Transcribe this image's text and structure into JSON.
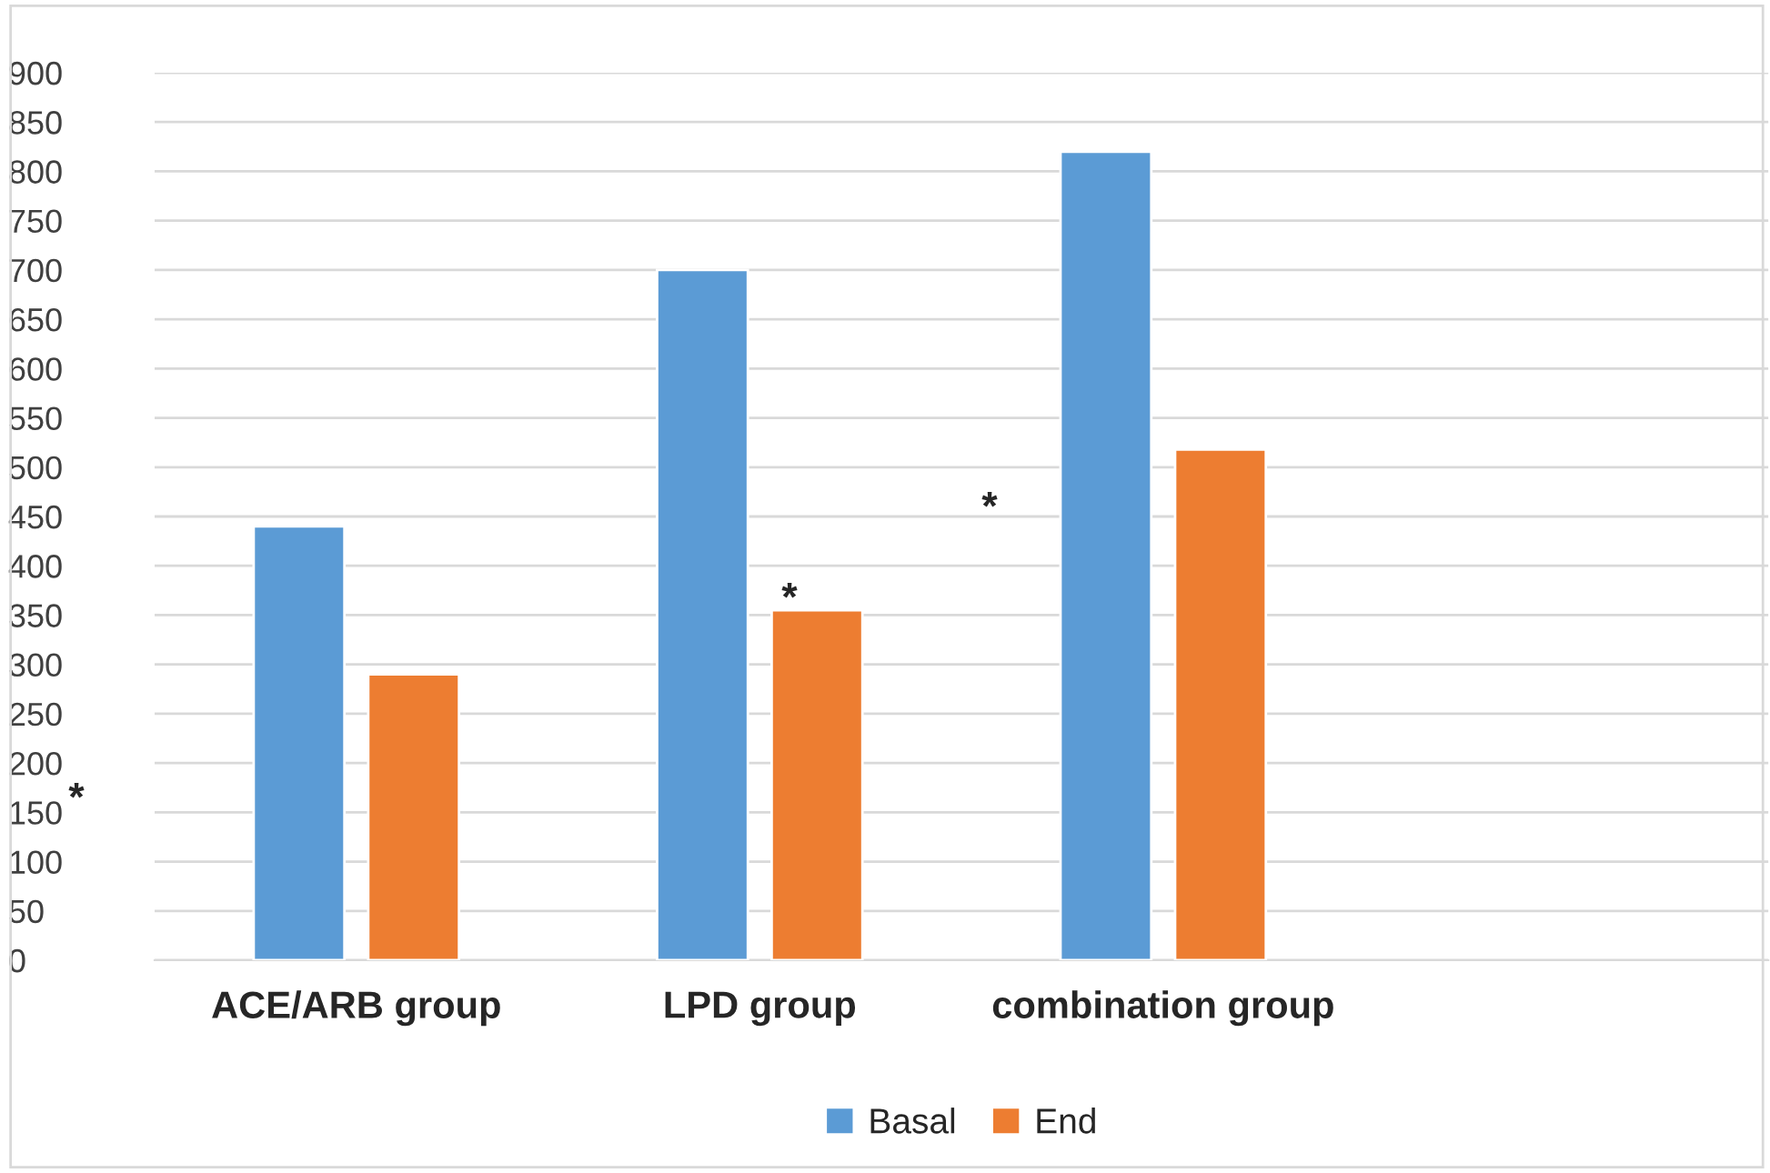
{
  "chart_data": {
    "type": "bar",
    "categories": [
      "ACE/ARB group",
      "LPD group",
      "combination group",
      null
    ],
    "series": [
      {
        "name": "Basal",
        "color": "#5b9bd5",
        "values": [
          440,
          700,
          820,
          null
        ]
      },
      {
        "name": "End",
        "color": "#ed7d31",
        "values": [
          290,
          355,
          518,
          null
        ]
      }
    ],
    "ylim": [
      0,
      900
    ],
    "yticks": [
      0,
      50,
      100,
      150,
      200,
      250,
      300,
      350,
      400,
      450,
      500,
      550,
      600,
      650,
      700,
      750,
      800,
      850,
      900
    ],
    "grid": "y",
    "legend": "bottom",
    "annotations": [
      "*",
      "*",
      "*"
    ]
  }
}
